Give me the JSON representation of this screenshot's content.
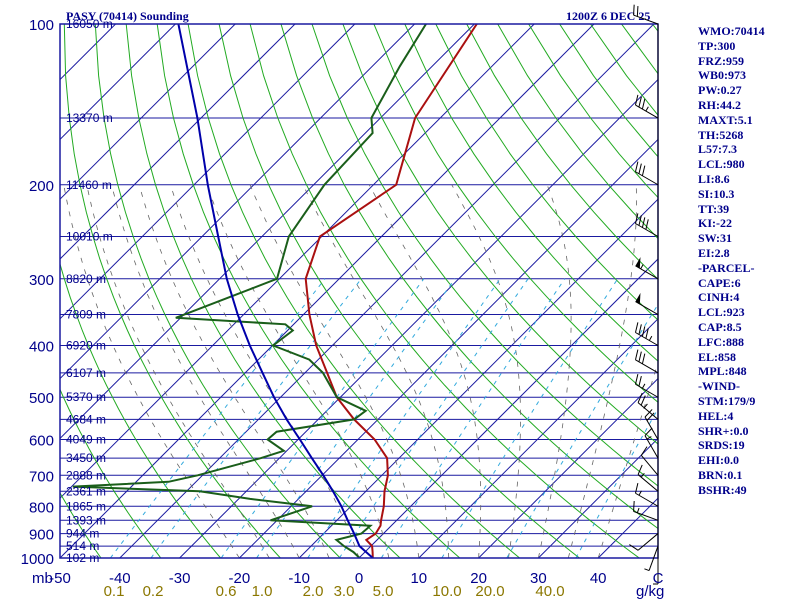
{
  "header": {
    "station": "PASY (70414) Sounding",
    "time": "1200Z  6 DEC 25"
  },
  "indices": [
    "WMO:70414",
    "TP:300",
    "FRZ:959",
    "WB0:973",
    "PW:0.27",
    "RH:44.2",
    "MAXT:5.1",
    "TH:5268",
    "L57:7.3",
    "LCL:980",
    "LI:8.6",
    "SI:10.3",
    "TT:39",
    "KI:-22",
    "SW:31",
    "EI:2.8",
    "-PARCEL-",
    "CAPE:6",
    "CINH:4",
    "LCL:923",
    "CAP:8.5",
    "LFC:888",
    "EL:858",
    "MPL:848",
    "-WIND-",
    "STM:179/9",
    "HEL:4",
    "SHR+:0.0",
    "SRDS:19",
    "EHI:0.0",
    "BRN:0.1",
    "BSHR:49"
  ],
  "chart_data": {
    "type": "skew-t",
    "title": "PASY (70414) Sounding",
    "pressure_ticks": [
      100,
      200,
      300,
      400,
      500,
      600,
      700,
      800,
      900,
      1000
    ],
    "pressure_unit": "mb",
    "temperature_ticks": [
      -50,
      -40,
      -30,
      -20,
      -10,
      0,
      10,
      20,
      30,
      40
    ],
    "temperature_end_label": "C",
    "xlim": [
      -50,
      50
    ],
    "ylim_hpa": [
      1000,
      100
    ],
    "mixing_ratio_ticks": [
      "0.1",
      "0.2",
      "0.6",
      "1.0",
      "2.0",
      "3.0",
      "5.0",
      "10.0",
      "20.0",
      "40.0"
    ],
    "mixing_ratio_unit": "g/kg",
    "height_labels": [
      {
        "p": 1000,
        "text": "102 m"
      },
      {
        "p": 950,
        "text": "514 m"
      },
      {
        "p": 900,
        "text": "944 m"
      },
      {
        "p": 850,
        "text": "1393 m"
      },
      {
        "p": 800,
        "text": "1865 m"
      },
      {
        "p": 750,
        "text": "2361 m"
      },
      {
        "p": 700,
        "text": "2888 m"
      },
      {
        "p": 650,
        "text": "3450 m"
      },
      {
        "p": 600,
        "text": "4049 m"
      },
      {
        "p": 550,
        "text": "4684 m"
      },
      {
        "p": 500,
        "text": "5370 m"
      },
      {
        "p": 450,
        "text": "6107 m"
      },
      {
        "p": 400,
        "text": "6920 m"
      },
      {
        "p": 350,
        "text": "7809 m"
      },
      {
        "p": 300,
        "text": "8820 m"
      },
      {
        "p": 250,
        "text": "10010 m"
      },
      {
        "p": 200,
        "text": "11460 m"
      },
      {
        "p": 150,
        "text": "13370 m"
      },
      {
        "p": 100,
        "text": "16050 m"
      }
    ],
    "series": [
      {
        "name": "temperature",
        "color": "#aa1010",
        "points": [
          [
            1000,
            2.3
          ],
          [
            975,
            1.3
          ],
          [
            950,
            0.2
          ],
          [
            925,
            -1.8
          ],
          [
            900,
            -1.3
          ],
          [
            870,
            -1.8
          ],
          [
            850,
            -2.6
          ],
          [
            800,
            -4.5
          ],
          [
            750,
            -6.9
          ],
          [
            700,
            -9.0
          ],
          [
            650,
            -12.0
          ],
          [
            600,
            -17.2
          ],
          [
            550,
            -24.0
          ],
          [
            500,
            -30.6
          ],
          [
            450,
            -36.3
          ],
          [
            400,
            -42.7
          ],
          [
            350,
            -49.0
          ],
          [
            300,
            -55.6
          ],
          [
            250,
            -60.3
          ],
          [
            200,
            -56.2
          ],
          [
            150,
            -64.2
          ],
          [
            100,
            -69.6
          ]
        ]
      },
      {
        "name": "dewpoint",
        "color": "#1a5e1a",
        "points": [
          [
            1000,
            0.1
          ],
          [
            975,
            -1.9
          ],
          [
            950,
            -4.5
          ],
          [
            925,
            -6.8
          ],
          [
            900,
            -3.7
          ],
          [
            870,
            -3.5
          ],
          [
            850,
            -21.1
          ],
          [
            800,
            -16.5
          ],
          [
            775,
            -28.1
          ],
          [
            750,
            -37.8
          ],
          [
            735,
            -59.8
          ],
          [
            720,
            -44.6
          ],
          [
            700,
            -40.8
          ],
          [
            650,
            -33.1
          ],
          [
            630,
            -30.5
          ],
          [
            600,
            -35.1
          ],
          [
            580,
            -34.9
          ],
          [
            550,
            -24.0
          ],
          [
            530,
            -23.5
          ],
          [
            500,
            -30.6
          ],
          [
            450,
            -37.0
          ],
          [
            425,
            -41.5
          ],
          [
            400,
            -49.9
          ],
          [
            375,
            -49.1
          ],
          [
            365,
            -51.4
          ],
          [
            355,
            -70.8
          ],
          [
            300,
            -60.4
          ],
          [
            250,
            -65.5
          ],
          [
            200,
            -68.2
          ],
          [
            160,
            -68.8
          ],
          [
            150,
            -71.5
          ],
          [
            120,
            -75.4
          ],
          [
            100,
            -78.1
          ]
        ]
      },
      {
        "name": "parcel",
        "color": "#0000aa",
        "points": [
          [
            1000,
            2.3
          ],
          [
            950,
            -1.9
          ],
          [
            900,
            -4.9
          ],
          [
            850,
            -8.2
          ],
          [
            800,
            -11.6
          ],
          [
            750,
            -15.5
          ],
          [
            700,
            -19.8
          ],
          [
            650,
            -24.6
          ],
          [
            600,
            -29.7
          ],
          [
            550,
            -35.3
          ],
          [
            500,
            -41.1
          ],
          [
            450,
            -47.1
          ],
          [
            400,
            -53.8
          ],
          [
            350,
            -61.0
          ],
          [
            300,
            -68.8
          ],
          [
            250,
            -77.3
          ],
          [
            200,
            -87.7
          ],
          [
            150,
            -100.6
          ],
          [
            100,
            -119.5
          ]
        ]
      }
    ],
    "wind_barbs": [
      {
        "p": 1000,
        "dir": 180,
        "spd": 5
      },
      {
        "p": 950,
        "dir": 200,
        "spd": 5
      },
      {
        "p": 900,
        "dir": 230,
        "spd": 10
      },
      {
        "p": 850,
        "dir": 290,
        "spd": 15
      },
      {
        "p": 800,
        "dir": 300,
        "spd": 15
      },
      {
        "p": 750,
        "dir": 310,
        "spd": 15
      },
      {
        "p": 700,
        "dir": 320,
        "spd": 10
      },
      {
        "p": 650,
        "dir": 330,
        "spd": 15
      },
      {
        "p": 600,
        "dir": 330,
        "spd": 20
      },
      {
        "p": 550,
        "dir": 310,
        "spd": 25
      },
      {
        "p": 500,
        "dir": 300,
        "spd": 25
      },
      {
        "p": 450,
        "dir": 300,
        "spd": 30
      },
      {
        "p": 400,
        "dir": 300,
        "spd": 45
      },
      {
        "p": 350,
        "dir": 300,
        "spd": 50
      },
      {
        "p": 300,
        "dir": 300,
        "spd": 55
      },
      {
        "p": 250,
        "dir": 300,
        "spd": 40
      },
      {
        "p": 200,
        "dir": 300,
        "spd": 30
      },
      {
        "p": 150,
        "dir": 300,
        "spd": 35
      },
      {
        "p": 100,
        "dir": 290,
        "spd": 20
      }
    ]
  }
}
